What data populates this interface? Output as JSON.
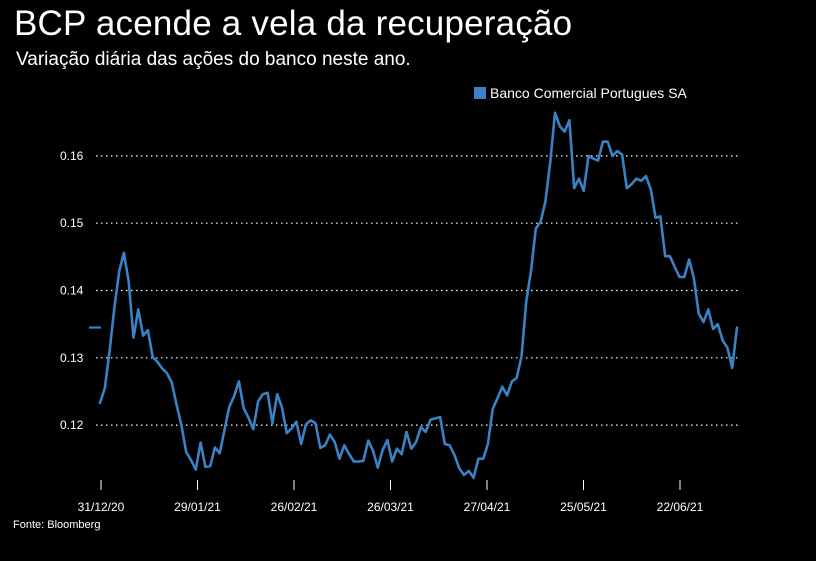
{
  "title": "BCP acende a vela da recuperação",
  "subtitle": "Variação diária das ações do banco neste ano.",
  "source": "Fonte: Bloomberg",
  "colors": {
    "background": "#000000",
    "line": "#3a82c4",
    "grid": "#ffffff",
    "text": "#ffffff"
  },
  "chart_data": {
    "type": "line",
    "legend": "top-right",
    "grid": "horizontal dotted",
    "ylim": [
      0.112,
      0.168
    ],
    "y_ticks": [
      "0.12",
      "0.13",
      "0.14",
      "0.15",
      "0.16"
    ],
    "x_ticks": [
      "31/12/20",
      "29/01/21",
      "26/02/21",
      "26/03/21",
      "27/04/21",
      "25/05/21",
      "22/06/21"
    ],
    "last_price": 0.1345,
    "series": [
      {
        "name": "Banco Comercial Portugues SA",
        "values": [
          0.1233,
          0.1255,
          0.131,
          0.1375,
          0.1428,
          0.1456,
          0.1413,
          0.133,
          0.1372,
          0.1333,
          0.1341,
          0.1301,
          0.1294,
          0.1284,
          0.1277,
          0.1263,
          0.123,
          0.12,
          0.116,
          0.1148,
          0.1134,
          0.1174,
          0.1138,
          0.1139,
          0.1167,
          0.1158,
          0.1193,
          0.1227,
          0.1243,
          0.1265,
          0.1225,
          0.1211,
          0.1194,
          0.1235,
          0.1246,
          0.1248,
          0.1203,
          0.1246,
          0.1226,
          0.1188,
          0.1195,
          0.1205,
          0.1172,
          0.1201,
          0.1207,
          0.1203,
          0.1166,
          0.117,
          0.1186,
          0.1175,
          0.115,
          0.117,
          0.1157,
          0.1146,
          0.1146,
          0.1147,
          0.1177,
          0.1162,
          0.1137,
          0.1163,
          0.1178,
          0.1146,
          0.1165,
          0.1157,
          0.119,
          0.1165,
          0.1175,
          0.1197,
          0.119,
          0.1208,
          0.121,
          0.1212,
          0.1172,
          0.117,
          0.1156,
          0.1136,
          0.1126,
          0.1132,
          0.1122,
          0.115,
          0.115,
          0.1172,
          0.1224,
          0.124,
          0.1257,
          0.1244,
          0.1265,
          0.127,
          0.1302,
          0.1384,
          0.143,
          0.1492,
          0.1502,
          0.1532,
          0.159,
          0.1664,
          0.1644,
          0.1636,
          0.1653,
          0.1552,
          0.1566,
          0.1548,
          0.16,
          0.1596,
          0.1593,
          0.1621,
          0.1621,
          0.16,
          0.1607,
          0.1602,
          0.1552,
          0.1558,
          0.1566,
          0.1563,
          0.157,
          0.155,
          0.1508,
          0.151,
          0.1451,
          0.1451,
          0.1435,
          0.142,
          0.142,
          0.1446,
          0.1418,
          0.1366,
          0.1353,
          0.1372,
          0.1343,
          0.135,
          0.1326,
          0.1315,
          0.1285,
          0.1345
        ]
      }
    ]
  }
}
